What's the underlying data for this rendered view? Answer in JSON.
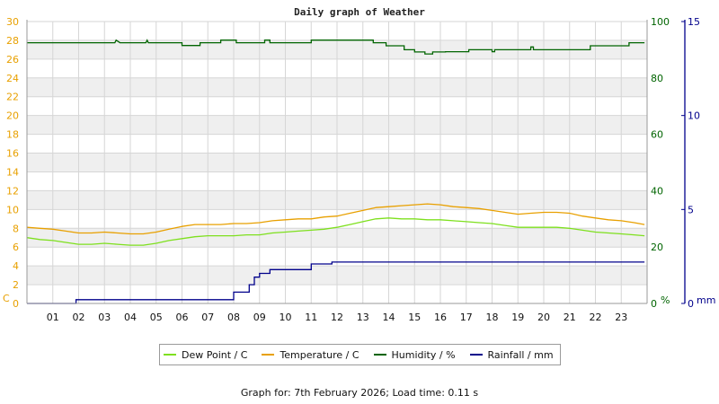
{
  "chart_data": {
    "type": "line",
    "title": "Daily graph of Weather",
    "x_tick_labels": [
      "01",
      "02",
      "03",
      "04",
      "05",
      "06",
      "07",
      "08",
      "09",
      "10",
      "11",
      "12",
      "13",
      "14",
      "15",
      "16",
      "17",
      "18",
      "19",
      "20",
      "21",
      "22",
      "23"
    ],
    "x_range_hours": [
      0,
      24
    ],
    "left_axis": {
      "label": "C",
      "ticks": [
        "0",
        "2",
        "4",
        "6",
        "8",
        "10",
        "12",
        "14",
        "16",
        "18",
        "20",
        "22",
        "24",
        "26",
        "28",
        "30"
      ],
      "range": [
        0,
        30
      ],
      "color": "#e8a000"
    },
    "humidity_axis": {
      "label": "%",
      "ticks": [
        "0",
        "20",
        "40",
        "60",
        "80",
        "100"
      ],
      "range": [
        0,
        100
      ],
      "color": "#006400"
    },
    "rain_axis": {
      "label": "mm",
      "ticks": [
        "0",
        "5",
        "10",
        "15"
      ],
      "range": [
        0,
        15
      ],
      "color": "#00008b"
    },
    "grid": true,
    "legend_position": "bottom",
    "series": [
      {
        "name": "Dew Point / C",
        "axis": "left",
        "color": "#7ee01e",
        "step": false,
        "points": [
          [
            0,
            7.0
          ],
          [
            0.5,
            6.8
          ],
          [
            1,
            6.7
          ],
          [
            1.5,
            6.5
          ],
          [
            2,
            6.3
          ],
          [
            2.5,
            6.3
          ],
          [
            3,
            6.4
          ],
          [
            3.5,
            6.3
          ],
          [
            4,
            6.2
          ],
          [
            4.5,
            6.2
          ],
          [
            5,
            6.4
          ],
          [
            5.5,
            6.7
          ],
          [
            6,
            6.9
          ],
          [
            6.5,
            7.1
          ],
          [
            7,
            7.2
          ],
          [
            7.5,
            7.2
          ],
          [
            8,
            7.2
          ],
          [
            8.5,
            7.3
          ],
          [
            9,
            7.3
          ],
          [
            9.5,
            7.5
          ],
          [
            10,
            7.6
          ],
          [
            10.5,
            7.7
          ],
          [
            11,
            7.8
          ],
          [
            11.5,
            7.9
          ],
          [
            12,
            8.1
          ],
          [
            12.5,
            8.4
          ],
          [
            13,
            8.7
          ],
          [
            13.5,
            9.0
          ],
          [
            14,
            9.1
          ],
          [
            14.5,
            9.0
          ],
          [
            15,
            9.0
          ],
          [
            15.5,
            8.9
          ],
          [
            16,
            8.9
          ],
          [
            16.5,
            8.8
          ],
          [
            17,
            8.7
          ],
          [
            17.5,
            8.6
          ],
          [
            18,
            8.5
          ],
          [
            18.5,
            8.3
          ],
          [
            19,
            8.1
          ],
          [
            19.5,
            8.1
          ],
          [
            20,
            8.1
          ],
          [
            20.5,
            8.1
          ],
          [
            21,
            8.0
          ],
          [
            21.5,
            7.8
          ],
          [
            22,
            7.6
          ],
          [
            22.5,
            7.5
          ],
          [
            23,
            7.4
          ],
          [
            23.5,
            7.3
          ],
          [
            23.9,
            7.2
          ]
        ]
      },
      {
        "name": "Temperature / C",
        "axis": "left",
        "color": "#e8a000",
        "step": false,
        "points": [
          [
            0,
            8.1
          ],
          [
            0.5,
            8.0
          ],
          [
            1,
            7.9
          ],
          [
            1.5,
            7.7
          ],
          [
            2,
            7.5
          ],
          [
            2.5,
            7.5
          ],
          [
            3,
            7.6
          ],
          [
            3.5,
            7.5
          ],
          [
            4,
            7.4
          ],
          [
            4.5,
            7.4
          ],
          [
            5,
            7.6
          ],
          [
            5.5,
            7.9
          ],
          [
            6,
            8.2
          ],
          [
            6.5,
            8.4
          ],
          [
            7,
            8.4
          ],
          [
            7.5,
            8.4
          ],
          [
            8,
            8.5
          ],
          [
            8.5,
            8.5
          ],
          [
            9,
            8.6
          ],
          [
            9.5,
            8.8
          ],
          [
            10,
            8.9
          ],
          [
            10.5,
            9.0
          ],
          [
            11,
            9.0
          ],
          [
            11.5,
            9.2
          ],
          [
            12,
            9.3
          ],
          [
            12.5,
            9.6
          ],
          [
            13,
            9.9
          ],
          [
            13.5,
            10.2
          ],
          [
            14,
            10.3
          ],
          [
            14.5,
            10.4
          ],
          [
            15,
            10.5
          ],
          [
            15.5,
            10.6
          ],
          [
            16,
            10.5
          ],
          [
            16.5,
            10.3
          ],
          [
            17,
            10.2
          ],
          [
            17.5,
            10.1
          ],
          [
            18,
            9.9
          ],
          [
            18.5,
            9.7
          ],
          [
            19,
            9.5
          ],
          [
            19.5,
            9.6
          ],
          [
            20,
            9.7
          ],
          [
            20.5,
            9.7
          ],
          [
            21,
            9.6
          ],
          [
            21.5,
            9.3
          ],
          [
            22,
            9.1
          ],
          [
            22.5,
            8.9
          ],
          [
            23,
            8.8
          ],
          [
            23.5,
            8.6
          ],
          [
            23.9,
            8.4
          ]
        ]
      },
      {
        "name": "Humidity / %",
        "axis": "humidity",
        "color": "#006400",
        "step": true,
        "points": [
          [
            0,
            92.5
          ],
          [
            3.4,
            92.5
          ],
          [
            3.45,
            93.4
          ],
          [
            3.6,
            92.5
          ],
          [
            4.6,
            92.5
          ],
          [
            4.65,
            93.4
          ],
          [
            4.7,
            92.5
          ],
          [
            6,
            92.5
          ],
          [
            6,
            91.5
          ],
          [
            6.7,
            91.5
          ],
          [
            6.7,
            92.5
          ],
          [
            7.5,
            92.5
          ],
          [
            7.5,
            93.4
          ],
          [
            8.1,
            93.4
          ],
          [
            8.1,
            92.5
          ],
          [
            9.2,
            92.5
          ],
          [
            9.2,
            93.4
          ],
          [
            9.4,
            93.4
          ],
          [
            9.4,
            92.5
          ],
          [
            11,
            92.5
          ],
          [
            11,
            93.4
          ],
          [
            12,
            93.4
          ],
          [
            13.4,
            93.4
          ],
          [
            13.4,
            92.5
          ],
          [
            13.9,
            92.5
          ],
          [
            13.9,
            91.4
          ],
          [
            14.6,
            91.4
          ],
          [
            14.6,
            90.0
          ],
          [
            15,
            90.0
          ],
          [
            15,
            89.2
          ],
          [
            15.4,
            89.2
          ],
          [
            15.4,
            88.5
          ],
          [
            15.7,
            88.5
          ],
          [
            15.7,
            89.2
          ],
          [
            16.2,
            89.2
          ],
          [
            16.2,
            89.3
          ],
          [
            17.1,
            89.3
          ],
          [
            17.1,
            90.0
          ],
          [
            18,
            90.0
          ],
          [
            18,
            89.3
          ],
          [
            18.1,
            89.3
          ],
          [
            18.1,
            90.0
          ],
          [
            19.5,
            90.0
          ],
          [
            19.5,
            91.0
          ],
          [
            19.6,
            91.0
          ],
          [
            19.6,
            90.0
          ],
          [
            21.8,
            90.0
          ],
          [
            21.8,
            91.4
          ],
          [
            23.3,
            91.4
          ],
          [
            23.3,
            92.5
          ],
          [
            23.9,
            92.5
          ]
        ]
      },
      {
        "name": "Rainfall / mm",
        "axis": "rain",
        "color": "#00008b",
        "step": true,
        "points": [
          [
            0,
            0.0
          ],
          [
            1.9,
            0.0
          ],
          [
            1.9,
            0.2
          ],
          [
            8.0,
            0.2
          ],
          [
            8.0,
            0.6
          ],
          [
            8.6,
            0.6
          ],
          [
            8.6,
            1.0
          ],
          [
            8.8,
            1.0
          ],
          [
            8.8,
            1.4
          ],
          [
            9.0,
            1.4
          ],
          [
            9.0,
            1.6
          ],
          [
            9.4,
            1.6
          ],
          [
            9.4,
            1.8
          ],
          [
            11.0,
            1.8
          ],
          [
            11.0,
            2.1
          ],
          [
            11.8,
            2.1
          ],
          [
            11.8,
            2.2
          ],
          [
            23.9,
            2.2
          ]
        ]
      }
    ]
  },
  "footer_text": "Graph for: 7th February 2026; Load time: 0.11 s"
}
